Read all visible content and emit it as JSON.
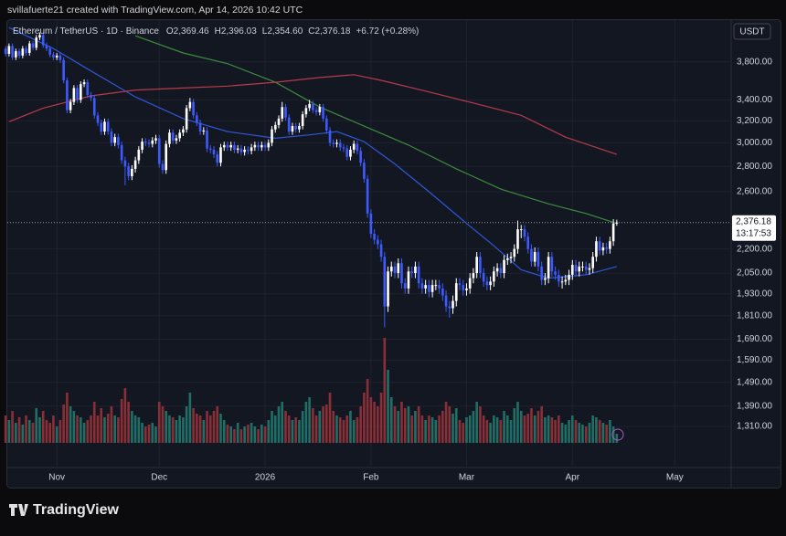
{
  "chart_data": {
    "type": "candlestick",
    "caption": "svillafuerte21 created with TradingView.com, Apr 14, 2026 10:42 UTC",
    "symbol": "Ethereum / TetherUS · 1D · Binance",
    "ohlc": [
      {
        "key": "O",
        "label": "2,369.46"
      },
      {
        "key": "H",
        "label": "2,396.03"
      },
      {
        "key": "L",
        "label": "2,354.60"
      },
      {
        "key": "C",
        "label": "2,376.18"
      }
    ],
    "change": "+6.72 (+0.28%)",
    "currency": "USDT",
    "watermark": "TradingView",
    "log_scale": true,
    "grid": true,
    "up_color": "#ffffff",
    "down_color": "#3d5afe",
    "volume_up_color": "#1f6f66",
    "volume_down_color": "#8a2f36",
    "xlim": [
      0.5,
      212.5
    ],
    "xticks": [
      {
        "value": 15,
        "label": "Nov"
      },
      {
        "value": 45,
        "label": "Dec"
      },
      {
        "value": 76,
        "label": "2026"
      },
      {
        "value": 107,
        "label": "Feb"
      },
      {
        "value": 135,
        "label": "Mar"
      },
      {
        "value": 166,
        "label": "Apr"
      },
      {
        "value": 196,
        "label": "May"
      }
    ],
    "ylim": [
      1168,
      4293
    ],
    "yticks": [
      {
        "value": 3800,
        "label": "3,800.00"
      },
      {
        "value": 3400,
        "label": "3,400.00"
      },
      {
        "value": 3200,
        "label": "3,200.00"
      },
      {
        "value": 3000,
        "label": "3,000.00"
      },
      {
        "value": 2800,
        "label": "2,800.00"
      },
      {
        "value": 2600,
        "label": "2,600.00"
      },
      {
        "value": 2200,
        "label": "2,200.00"
      },
      {
        "value": 2050,
        "label": "2,050.00"
      },
      {
        "value": 1930,
        "label": "1,930.00"
      },
      {
        "value": 1810,
        "label": "1,810.00"
      },
      {
        "value": 1690,
        "label": "1,690.00"
      },
      {
        "value": 1590,
        "label": "1,590.00"
      },
      {
        "value": 1490,
        "label": "1,490.00"
      },
      {
        "value": 1390,
        "label": "1,390.00"
      },
      {
        "value": 1310,
        "label": "1,310.00"
      }
    ],
    "last_price": {
      "value": 2376.18,
      "label": "2,376.18",
      "countdown": "13:17:53"
    },
    "candles": [
      [
        3950,
        3980,
        3860,
        3890
      ],
      [
        3890,
        4010,
        3860,
        3980
      ],
      [
        3980,
        4010,
        3820,
        3850
      ],
      [
        3850,
        3950,
        3820,
        3920
      ],
      [
        3920,
        3950,
        3840,
        3870
      ],
      [
        3870,
        3980,
        3840,
        3950
      ],
      [
        3950,
        3980,
        3870,
        3900
      ],
      [
        3900,
        4040,
        3870,
        4010
      ],
      [
        4010,
        4040,
        3930,
        3960
      ],
      [
        3960,
        4110,
        3930,
        4080
      ],
      [
        4080,
        4140,
        4050,
        4110
      ],
      [
        4110,
        4140,
        3960,
        3990
      ],
      [
        3990,
        4020,
        3920,
        3950
      ],
      [
        3950,
        3980,
        3850,
        3880
      ],
      [
        3880,
        3910,
        3820,
        3850
      ],
      [
        3850,
        3900,
        3820,
        3870
      ],
      [
        3870,
        3900,
        3790,
        3820
      ],
      [
        3820,
        3850,
        3570,
        3600
      ],
      [
        3600,
        3630,
        3270,
        3300
      ],
      [
        3300,
        3410,
        3270,
        3380
      ],
      [
        3380,
        3550,
        3350,
        3520
      ],
      [
        3520,
        3550,
        3370,
        3400
      ],
      [
        3400,
        3590,
        3370,
        3560
      ],
      [
        3560,
        3610,
        3530,
        3580
      ],
      [
        3580,
        3610,
        3420,
        3450
      ],
      [
        3450,
        3480,
        3390,
        3420
      ],
      [
        3420,
        3450,
        3220,
        3250
      ],
      [
        3250,
        3280,
        3150,
        3180
      ],
      [
        3180,
        3210,
        3070,
        3100
      ],
      [
        3100,
        3220,
        3070,
        3190
      ],
      [
        3190,
        3220,
        3070,
        3100
      ],
      [
        3100,
        3130,
        2970,
        3000
      ],
      [
        3000,
        3080,
        2970,
        3050
      ],
      [
        3050,
        3080,
        2950,
        2980
      ],
      [
        2980,
        3010,
        2820,
        2850
      ],
      [
        2850,
        2880,
        2650,
        2800
      ],
      [
        2800,
        2830,
        2690,
        2720
      ],
      [
        2720,
        2810,
        2690,
        2780
      ],
      [
        2780,
        2880,
        2750,
        2850
      ],
      [
        2850,
        2970,
        2820,
        2940
      ],
      [
        2940,
        3040,
        2910,
        3010
      ],
      [
        3010,
        3040,
        2970,
        3000
      ],
      [
        3000,
        3030,
        2960,
        2990
      ],
      [
        2990,
        3050,
        2960,
        3020
      ],
      [
        3020,
        3070,
        2990,
        3040
      ],
      [
        3040,
        3070,
        2790,
        2820
      ],
      [
        2820,
        2850,
        2740,
        2770
      ],
      [
        2770,
        3020,
        2740,
        2990
      ],
      [
        2990,
        3120,
        2960,
        3090
      ],
      [
        3090,
        3120,
        2990,
        3020
      ],
      [
        3020,
        3070,
        2990,
        3040
      ],
      [
        3040,
        3120,
        3010,
        3090
      ],
      [
        3090,
        3150,
        3060,
        3120
      ],
      [
        3120,
        3350,
        3090,
        3320
      ],
      [
        3320,
        3420,
        3290,
        3380
      ],
      [
        3380,
        3410,
        3220,
        3250
      ],
      [
        3250,
        3280,
        3150,
        3180
      ],
      [
        3180,
        3210,
        3070,
        3100
      ],
      [
        3100,
        3140,
        3070,
        3110
      ],
      [
        3110,
        3140,
        2920,
        2950
      ],
      [
        2950,
        2980,
        2910,
        2940
      ],
      [
        2940,
        2970,
        2870,
        2900
      ],
      [
        2900,
        2930,
        2800,
        2830
      ],
      [
        2830,
        2990,
        2800,
        2960
      ],
      [
        2960,
        3010,
        2930,
        2980
      ],
      [
        2980,
        3010,
        2930,
        2960
      ],
      [
        2960,
        3010,
        2930,
        2980
      ],
      [
        2980,
        3010,
        2910,
        2940
      ],
      [
        2940,
        2980,
        2910,
        2950
      ],
      [
        2950,
        2980,
        2890,
        2920
      ],
      [
        2920,
        2970,
        2890,
        2940
      ],
      [
        2940,
        2970,
        2900,
        2930
      ],
      [
        2930,
        2990,
        2900,
        2960
      ],
      [
        2960,
        3010,
        2930,
        2980
      ],
      [
        2980,
        3010,
        2930,
        2960
      ],
      [
        2960,
        3010,
        2930,
        2980
      ],
      [
        2980,
        3010,
        2930,
        2960
      ],
      [
        2960,
        3030,
        2930,
        3000
      ],
      [
        3000,
        3150,
        2970,
        3120
      ],
      [
        3120,
        3190,
        3090,
        3160
      ],
      [
        3160,
        3250,
        3130,
        3220
      ],
      [
        3220,
        3380,
        3190,
        3330
      ],
      [
        3330,
        3360,
        3200,
        3230
      ],
      [
        3230,
        3260,
        3070,
        3100
      ],
      [
        3100,
        3180,
        3070,
        3150
      ],
      [
        3150,
        3180,
        3090,
        3120
      ],
      [
        3120,
        3180,
        3090,
        3150
      ],
      [
        3150,
        3290,
        3120,
        3260
      ],
      [
        3260,
        3350,
        3230,
        3320
      ],
      [
        3320,
        3400,
        3290,
        3360
      ],
      [
        3360,
        3390,
        3270,
        3300
      ],
      [
        3300,
        3330,
        3250,
        3280
      ],
      [
        3280,
        3360,
        3250,
        3330
      ],
      [
        3330,
        3360,
        3190,
        3220
      ],
      [
        3220,
        3250,
        3080,
        3110
      ],
      [
        3110,
        3140,
        2970,
        3000
      ],
      [
        3000,
        3030,
        2960,
        2990
      ],
      [
        2990,
        3030,
        2960,
        3000
      ],
      [
        3000,
        3030,
        2930,
        2960
      ],
      [
        2960,
        2990,
        2920,
        2950
      ],
      [
        2950,
        2980,
        2850,
        2880
      ],
      [
        2880,
        2970,
        2850,
        2940
      ],
      [
        2940,
        3020,
        2910,
        2990
      ],
      [
        2990,
        3020,
        2900,
        2930
      ],
      [
        2930,
        2960,
        2800,
        2830
      ],
      [
        2830,
        2860,
        2670,
        2700
      ],
      [
        2700,
        2730,
        2410,
        2440
      ],
      [
        2440,
        2470,
        2270,
        2300
      ],
      [
        2300,
        2330,
        2230,
        2260
      ],
      [
        2260,
        2290,
        2200,
        2230
      ],
      [
        2230,
        2260,
        2120,
        2150
      ],
      [
        2150,
        2180,
        1750,
        1860
      ],
      [
        1860,
        2090,
        1830,
        2060
      ],
      [
        2060,
        2120,
        2030,
        2090
      ],
      [
        2090,
        2120,
        2020,
        2050
      ],
      [
        2050,
        2140,
        2020,
        2110
      ],
      [
        2110,
        2140,
        1960,
        1990
      ],
      [
        1990,
        2020,
        1930,
        1960
      ],
      [
        1960,
        2090,
        1930,
        2060
      ],
      [
        2060,
        2090,
        2020,
        2050
      ],
      [
        2050,
        2120,
        2020,
        2090
      ],
      [
        2090,
        2120,
        1960,
        1990
      ],
      [
        1990,
        2020,
        1930,
        1960
      ],
      [
        1960,
        2010,
        1930,
        1980
      ],
      [
        1980,
        2010,
        1910,
        1940
      ],
      [
        1940,
        2010,
        1910,
        1980
      ],
      [
        1980,
        2010,
        1950,
        1980
      ],
      [
        1980,
        2010,
        1930,
        1960
      ],
      [
        1960,
        1990,
        1890,
        1920
      ],
      [
        1920,
        1950,
        1830,
        1860
      ],
      [
        1860,
        1890,
        1800,
        1850
      ],
      [
        1850,
        1920,
        1820,
        1890
      ],
      [
        1890,
        2020,
        1860,
        1990
      ],
      [
        1990,
        2020,
        1950,
        1980
      ],
      [
        1980,
        2010,
        1920,
        1950
      ],
      [
        1950,
        1990,
        1920,
        1960
      ],
      [
        1960,
        2050,
        1930,
        2020
      ],
      [
        2020,
        2080,
        1990,
        2050
      ],
      [
        2050,
        2180,
        2020,
        2150
      ],
      [
        2150,
        2180,
        2020,
        2050
      ],
      [
        2050,
        2080,
        1970,
        2000
      ],
      [
        2000,
        2030,
        1950,
        1980
      ],
      [
        1980,
        2030,
        1950,
        2000
      ],
      [
        2000,
        2090,
        1970,
        2060
      ],
      [
        2060,
        2110,
        2030,
        2080
      ],
      [
        2080,
        2110,
        2020,
        2050
      ],
      [
        2050,
        2160,
        2020,
        2130
      ],
      [
        2130,
        2170,
        2100,
        2140
      ],
      [
        2140,
        2180,
        2110,
        2150
      ],
      [
        2150,
        2230,
        2120,
        2200
      ],
      [
        2200,
        2390,
        2170,
        2330
      ],
      [
        2330,
        2360,
        2270,
        2330
      ],
      [
        2330,
        2360,
        2250,
        2280
      ],
      [
        2280,
        2310,
        2170,
        2200
      ],
      [
        2200,
        2230,
        2090,
        2120
      ],
      [
        2120,
        2210,
        2090,
        2180
      ],
      [
        2180,
        2210,
        2060,
        2090
      ],
      [
        2090,
        2120,
        1980,
        2010
      ],
      [
        2010,
        2050,
        1980,
        2020
      ],
      [
        2020,
        2180,
        1990,
        2150
      ],
      [
        2150,
        2180,
        2030,
        2060
      ],
      [
        2060,
        2090,
        2010,
        2040
      ],
      [
        2040,
        2070,
        1970,
        2000
      ],
      [
        2000,
        2030,
        1960,
        2000
      ],
      [
        2000,
        2040,
        1980,
        2010
      ],
      [
        2010,
        2070,
        1980,
        2040
      ],
      [
        2040,
        2130,
        2010,
        2100
      ],
      [
        2100,
        2130,
        2030,
        2060
      ],
      [
        2060,
        2120,
        2030,
        2090
      ],
      [
        2090,
        2120,
        2060,
        2090
      ],
      [
        2090,
        2120,
        2040,
        2070
      ],
      [
        2070,
        2110,
        2040,
        2080
      ],
      [
        2080,
        2180,
        2050,
        2150
      ],
      [
        2150,
        2280,
        2120,
        2250
      ],
      [
        2250,
        2280,
        2160,
        2190
      ],
      [
        2190,
        2240,
        2160,
        2210
      ],
      [
        2210,
        2240,
        2170,
        2200
      ],
      [
        2200,
        2280,
        2170,
        2250
      ],
      [
        2250,
        2400,
        2220,
        2370
      ],
      [
        2369.46,
        2396.03,
        2354.6,
        2376.18
      ]
    ],
    "volume_lim": [
      0,
      120
    ],
    "volume": [
      30,
      25,
      35,
      22,
      28,
      20,
      30,
      25,
      22,
      38,
      28,
      35,
      25,
      22,
      30,
      18,
      25,
      42,
      55,
      40,
      35,
      30,
      28,
      22,
      25,
      30,
      45,
      30,
      38,
      28,
      32,
      40,
      30,
      28,
      48,
      60,
      45,
      35,
      30,
      28,
      22,
      18,
      20,
      22,
      18,
      45,
      40,
      35,
      30,
      28,
      25,
      30,
      28,
      40,
      55,
      38,
      32,
      30,
      25,
      35,
      30,
      35,
      40,
      32,
      25,
      20,
      18,
      15,
      22,
      15,
      18,
      20,
      22,
      18,
      15,
      20,
      18,
      25,
      35,
      30,
      40,
      45,
      35,
      30,
      25,
      28,
      25,
      35,
      45,
      50,
      38,
      30,
      35,
      40,
      42,
      55,
      35,
      30,
      28,
      25,
      30,
      35,
      25,
      28,
      40,
      55,
      70,
      50,
      45,
      40,
      55,
      115,
      80,
      50,
      40,
      35,
      45,
      38,
      40,
      30,
      35,
      40,
      30,
      25,
      30,
      28,
      25,
      30,
      35,
      45,
      40,
      32,
      38,
      25,
      22,
      28,
      30,
      35,
      45,
      40,
      30,
      25,
      22,
      30,
      28,
      25,
      35,
      30,
      25,
      38,
      45,
      35,
      30,
      32,
      38,
      30,
      35,
      40,
      28,
      30,
      28,
      25,
      30,
      22,
      20,
      25,
      30,
      25,
      22,
      20,
      18,
      22,
      30,
      28,
      25,
      22,
      20,
      25,
      18,
      10
    ],
    "moving_averages": [
      {
        "color": "#2f57d6",
        "x": [
          1,
          14,
          25,
          38,
          52,
          65,
          79,
          89,
          97,
          105,
          114,
          124,
          135,
          143,
          151,
          159,
          170,
          179
        ],
        "values": [
          4200,
          3950,
          3700,
          3430,
          3220,
          3100,
          3040,
          3070,
          3100,
          3010,
          2820,
          2600,
          2370,
          2220,
          2070,
          2020,
          2040,
          2090
        ]
      },
      {
        "color": "#3c8c3c",
        "x": [
          38,
          52,
          65,
          79,
          92,
          105,
          118,
          132,
          145,
          159,
          170,
          179
        ],
        "values": [
          4100,
          3900,
          3780,
          3580,
          3330,
          3150,
          2980,
          2780,
          2620,
          2510,
          2440,
          2370
        ]
      },
      {
        "color": "#b83a4b",
        "x": [
          1,
          11,
          25,
          38,
          52,
          65,
          79,
          92,
          102,
          110,
          124,
          137,
          151,
          164,
          179
        ],
        "values": [
          3190,
          3320,
          3440,
          3500,
          3520,
          3540,
          3580,
          3630,
          3660,
          3600,
          3480,
          3370,
          3250,
          3050,
          2900
        ]
      }
    ]
  }
}
